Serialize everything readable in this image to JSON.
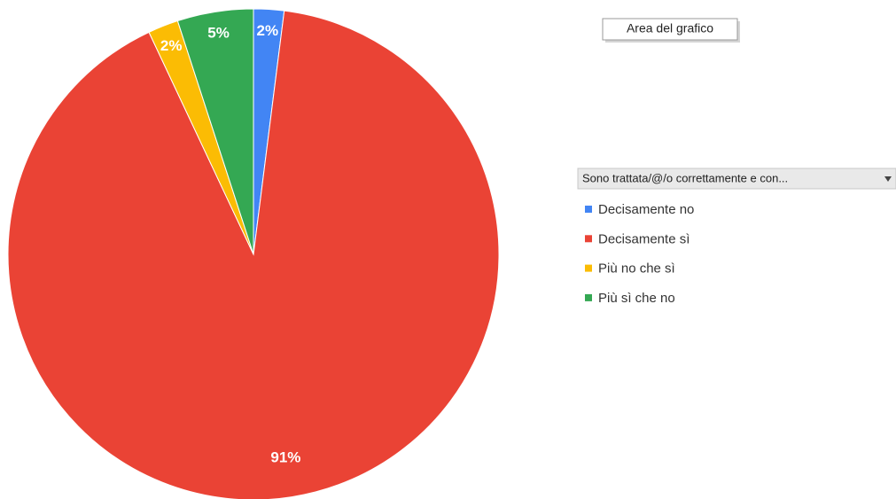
{
  "chart_data": {
    "type": "pie",
    "legend_title": "Sono trattata/@/o correttamente e con...",
    "annotation": "Area del grafico",
    "categories": [
      "Decisamente no",
      "Decisamente sì",
      "Più no che sì",
      "Più sì che no"
    ],
    "values": [
      2,
      91,
      2,
      5
    ],
    "value_labels": [
      "2%",
      "91%",
      "2%",
      "5%"
    ],
    "colors": [
      "#4285f4",
      "#ea4335",
      "#fbbc04",
      "#34a853"
    ],
    "legend": "right"
  }
}
